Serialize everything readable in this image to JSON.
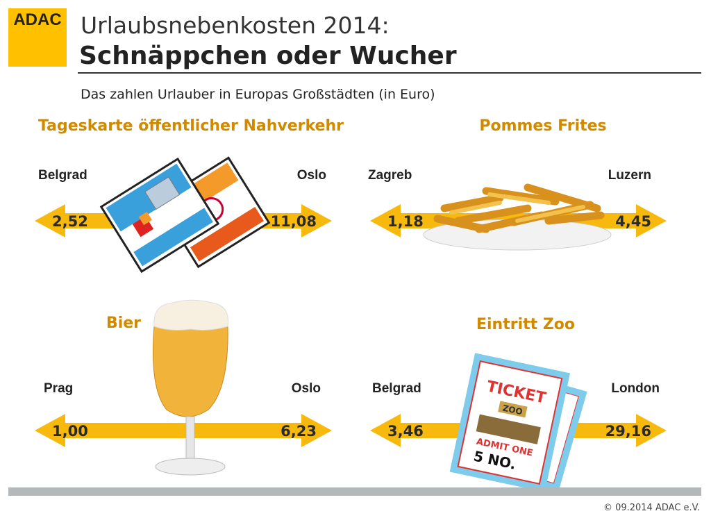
{
  "logo": "ADAC",
  "header": {
    "title": "Urlaubsnebenkosten 2014:",
    "headline": "Schnäppchen oder Wucher"
  },
  "subtitle": "Das zahlen Urlauber in Europas Großstädten (in Euro)",
  "panels": [
    {
      "title": "Tageskarte öffentlicher Nahverkehr",
      "min_city": "Belgrad",
      "min_value": "2,52",
      "max_city": "Oslo",
      "max_value": "11,08"
    },
    {
      "title": "Pommes Frites",
      "min_city": "Zagreb",
      "min_value": "1,18",
      "max_city": "Luzern",
      "max_value": "4,45"
    },
    {
      "title": "Bier",
      "min_city": "Prag",
      "min_value": "1,00",
      "max_city": "Oslo",
      "max_value": "6,23"
    },
    {
      "title": "Eintritt Zoo",
      "min_city": "Belgrad",
      "min_value": "3,46",
      "max_city": "London",
      "max_value": "29,16",
      "image_texts": [
        "TICKET",
        "ZOO",
        "ADMIT ONE",
        "5 NO."
      ]
    }
  ],
  "footer": "© 09.2014  ADAC e.V."
}
